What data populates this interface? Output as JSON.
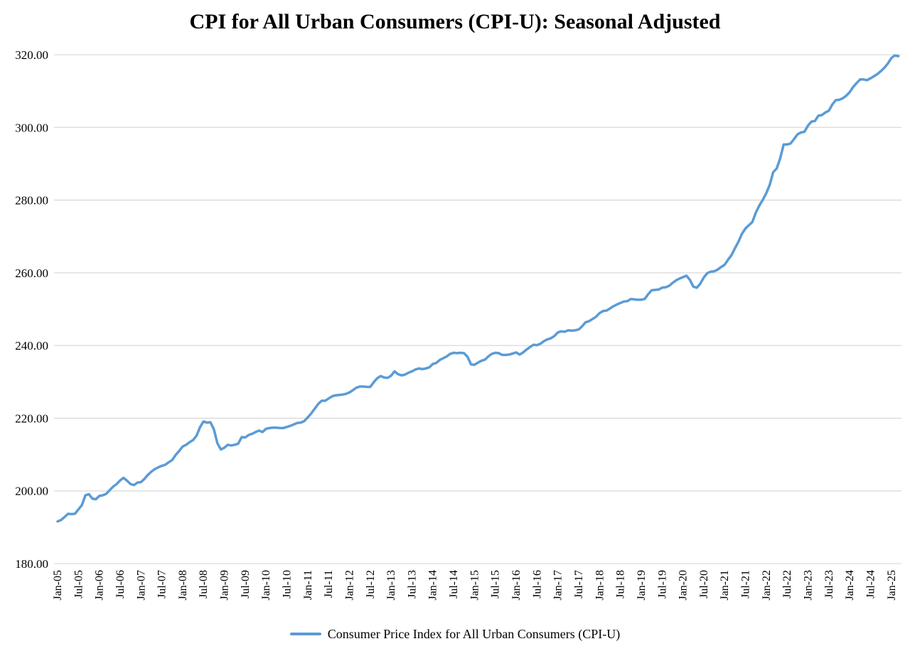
{
  "colors": {
    "background": "#FFFFFF",
    "gridline": "#D9D9D9",
    "axis_text": "#000000",
    "title_text": "#000000",
    "series_line": "#5B9BD5"
  },
  "chart_data": {
    "type": "line",
    "title": "CPI for All Urban Consumers (CPI-U): Seasonal Adjusted",
    "xlabel": "",
    "ylabel": "",
    "ylim": [
      180,
      320
    ],
    "y_ticks": [
      180,
      200,
      220,
      240,
      260,
      280,
      300,
      320
    ],
    "y_tick_decimals": 2,
    "grid": true,
    "legend_position": "bottom",
    "x_unit": "month",
    "x_first_month": "Jan-05",
    "x_last_month": "Mar-25",
    "x_tick_interval_months": 6,
    "x_tick_labels": [
      "Jan-05",
      "Jul-05",
      "Jan-06",
      "Jul-06",
      "Jan-07",
      "Jul-07",
      "Jan-08",
      "Jul-08",
      "Jan-09",
      "Jul-09",
      "Jan-10",
      "Jul-10",
      "Jan-11",
      "Jul-11",
      "Jan-12",
      "Jul-12",
      "Jan-13",
      "Jul-13",
      "Jan-14",
      "Jul-14",
      "Jan-15",
      "Jul-15",
      "Jan-16",
      "Jul-16",
      "Jan-17",
      "Jul-17",
      "Jan-18",
      "Jul-18",
      "Jan-19",
      "Jul-19",
      "Jan-20",
      "Jul-20",
      "Jan-21",
      "Jul-21",
      "Jan-22",
      "Jul-22",
      "Jan-23",
      "Jul-23",
      "Jan-24",
      "Jul-24",
      "Jan-25"
    ],
    "series": [
      {
        "name": "Consumer Price Index for All Urban Consumers (CPI-U)",
        "color": "#5B9BD5",
        "values": [
          191.6,
          192.0,
          192.8,
          193.7,
          193.6,
          193.7,
          194.9,
          196.1,
          198.8,
          199.1,
          197.9,
          197.7,
          198.6,
          198.8,
          199.2,
          200.2,
          201.2,
          201.9,
          202.9,
          203.6,
          202.8,
          201.9,
          201.6,
          202.3,
          202.4,
          203.3,
          204.4,
          205.3,
          206.0,
          206.5,
          206.9,
          207.2,
          207.9,
          208.5,
          209.9,
          211.0,
          212.2,
          212.7,
          213.4,
          214.0,
          215.2,
          217.5,
          219.1,
          218.8,
          218.9,
          216.9,
          213.1,
          211.4,
          211.9,
          212.7,
          212.5,
          212.7,
          213.0,
          214.8,
          214.7,
          215.4,
          215.7,
          216.2,
          216.6,
          216.2,
          217.1,
          217.3,
          217.4,
          217.4,
          217.3,
          217.3,
          217.6,
          217.9,
          218.3,
          218.7,
          218.8,
          219.2,
          220.2,
          221.3,
          222.6,
          223.9,
          224.8,
          224.8,
          225.4,
          226.0,
          226.3,
          226.4,
          226.5,
          226.7,
          227.1,
          227.7,
          228.4,
          228.7,
          228.7,
          228.6,
          228.6,
          229.9,
          231.0,
          231.6,
          231.2,
          231.1,
          231.7,
          232.9,
          232.1,
          231.8,
          232.0,
          232.5,
          232.9,
          233.4,
          233.7,
          233.5,
          233.7,
          234.0,
          234.9,
          235.2,
          236.0,
          236.5,
          237.0,
          237.7,
          238.0,
          237.9,
          238.0,
          237.9,
          236.9,
          234.8,
          234.7,
          235.3,
          235.8,
          236.1,
          237.0,
          237.7,
          238.0,
          237.9,
          237.4,
          237.4,
          237.5,
          237.8,
          238.1,
          237.5,
          238.1,
          238.9,
          239.6,
          240.2,
          240.1,
          240.5,
          241.2,
          241.7,
          242.0,
          242.6,
          243.6,
          243.9,
          243.8,
          244.2,
          244.1,
          244.2,
          244.4,
          245.3,
          246.4,
          246.7,
          247.3,
          247.9,
          248.9,
          249.5,
          249.6,
          250.2,
          250.8,
          251.3,
          251.7,
          252.1,
          252.2,
          252.8,
          252.7,
          252.6,
          252.6,
          252.8,
          254.1,
          255.2,
          255.3,
          255.4,
          255.9,
          256.0,
          256.4,
          257.2,
          257.9,
          258.4,
          258.8,
          259.2,
          258.1,
          256.2,
          255.9,
          257.0,
          258.7,
          259.9,
          260.3,
          260.4,
          260.9,
          261.6,
          262.2,
          263.6,
          264.9,
          266.8,
          268.6,
          270.7,
          272.2,
          273.1,
          274.0,
          276.6,
          278.5,
          280.1,
          281.9,
          284.2,
          287.7,
          288.7,
          291.5,
          295.3,
          295.3,
          295.6,
          296.8,
          298.1,
          298.6,
          298.8,
          300.5,
          301.6,
          301.8,
          303.2,
          303.4,
          304.1,
          304.6,
          306.3,
          307.5,
          307.6,
          308.0,
          308.7,
          309.7,
          311.1,
          312.2,
          313.2,
          313.2,
          313.0,
          313.5,
          314.1,
          314.7,
          315.5,
          316.4,
          317.6,
          319.1,
          319.8,
          319.6
        ]
      }
    ]
  }
}
